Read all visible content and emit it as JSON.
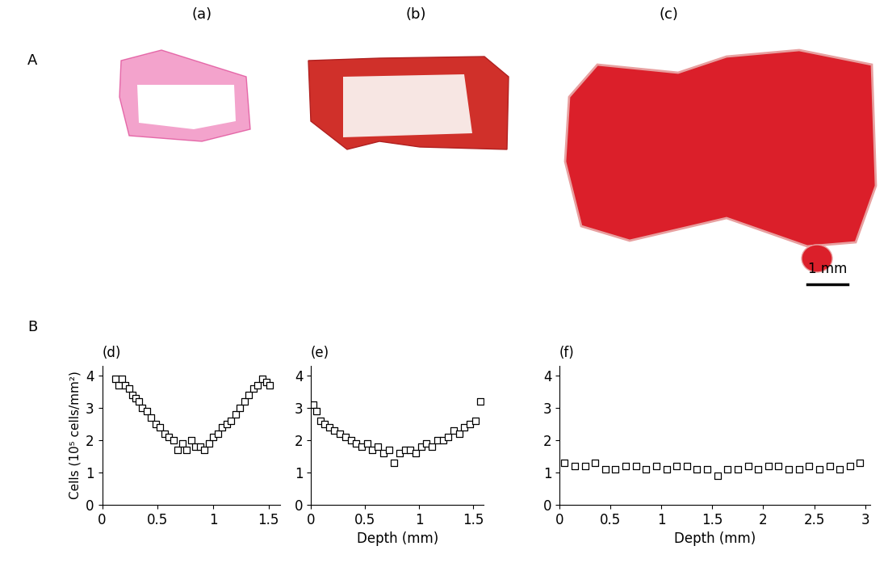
{
  "figure": {
    "row_labels": [
      "A",
      "B"
    ],
    "image_panels": [
      "(a)",
      "(b)",
      "(c)"
    ],
    "scale_bar": "1 mm"
  },
  "chart_data": [
    {
      "type": "scatter",
      "title": "(d)",
      "y_label": "Cells (10⁵ cells/mm²)",
      "x": [
        0.12,
        0.15,
        0.18,
        0.21,
        0.24,
        0.27,
        0.3,
        0.33,
        0.36,
        0.4,
        0.44,
        0.48,
        0.52,
        0.56,
        0.6,
        0.64,
        0.68,
        0.72,
        0.76,
        0.8,
        0.84,
        0.88,
        0.92,
        0.96,
        1.0,
        1.04,
        1.08,
        1.12,
        1.16,
        1.2,
        1.24,
        1.28,
        1.32,
        1.36,
        1.4,
        1.44,
        1.48,
        1.51
      ],
      "values": [
        3.9,
        3.7,
        3.9,
        3.7,
        3.6,
        3.4,
        3.3,
        3.2,
        3.0,
        2.9,
        2.7,
        2.5,
        2.4,
        2.2,
        2.1,
        2.0,
        1.7,
        1.9,
        1.7,
        2.0,
        1.8,
        1.8,
        1.7,
        1.9,
        2.1,
        2.2,
        2.4,
        2.5,
        2.6,
        2.8,
        3.0,
        3.2,
        3.4,
        3.6,
        3.7,
        3.9,
        3.8,
        3.7
      ],
      "xlim": [
        0,
        1.6
      ],
      "xticks": [
        0,
        0.5,
        1,
        1.5
      ],
      "ylim": [
        0,
        4.3
      ],
      "yticks": [
        0,
        1,
        2,
        3,
        4
      ],
      "marker": "square",
      "color": "#000000",
      "grid": false
    },
    {
      "type": "scatter",
      "title": "(e)",
      "x_label": "Depth (mm)",
      "x": [
        0.02,
        0.05,
        0.09,
        0.13,
        0.17,
        0.22,
        0.27,
        0.32,
        0.37,
        0.42,
        0.47,
        0.52,
        0.57,
        0.62,
        0.67,
        0.72,
        0.77,
        0.82,
        0.87,
        0.92,
        0.97,
        1.02,
        1.07,
        1.12,
        1.17,
        1.22,
        1.27,
        1.32,
        1.37,
        1.42,
        1.47,
        1.52,
        1.57
      ],
      "values": [
        3.1,
        2.9,
        2.6,
        2.5,
        2.4,
        2.3,
        2.2,
        2.1,
        2.0,
        1.9,
        1.8,
        1.9,
        1.7,
        1.8,
        1.6,
        1.7,
        1.3,
        1.6,
        1.7,
        1.7,
        1.6,
        1.8,
        1.9,
        1.8,
        2.0,
        2.0,
        2.1,
        2.3,
        2.2,
        2.4,
        2.5,
        2.6,
        3.2
      ],
      "xlim": [
        0,
        1.6
      ],
      "xticks": [
        0,
        0.5,
        1,
        1.5
      ],
      "ylim": [
        0,
        4.3
      ],
      "yticks": [
        0,
        1,
        2,
        3,
        4
      ],
      "marker": "square",
      "color": "#000000",
      "grid": false
    },
    {
      "type": "scatter",
      "title": "(f)",
      "x_label": "Depth (mm)",
      "x": [
        0.05,
        0.15,
        0.25,
        0.35,
        0.45,
        0.55,
        0.65,
        0.75,
        0.85,
        0.95,
        1.05,
        1.15,
        1.25,
        1.35,
        1.45,
        1.55,
        1.65,
        1.75,
        1.85,
        1.95,
        2.05,
        2.15,
        2.25,
        2.35,
        2.45,
        2.55,
        2.65,
        2.75,
        2.85,
        2.95
      ],
      "values": [
        1.3,
        1.2,
        1.2,
        1.3,
        1.1,
        1.1,
        1.2,
        1.2,
        1.1,
        1.2,
        1.1,
        1.2,
        1.2,
        1.1,
        1.1,
        0.9,
        1.1,
        1.1,
        1.2,
        1.1,
        1.2,
        1.2,
        1.1,
        1.1,
        1.2,
        1.1,
        1.2,
        1.1,
        1.2,
        1.3
      ],
      "xlim": [
        0,
        3.05
      ],
      "xticks": [
        0,
        0.5,
        1,
        1.5,
        2,
        2.5,
        3
      ],
      "ylim": [
        0,
        4.3
      ],
      "yticks": [
        0,
        1,
        2,
        3,
        4
      ],
      "marker": "square",
      "color": "#000000",
      "grid": false
    }
  ]
}
